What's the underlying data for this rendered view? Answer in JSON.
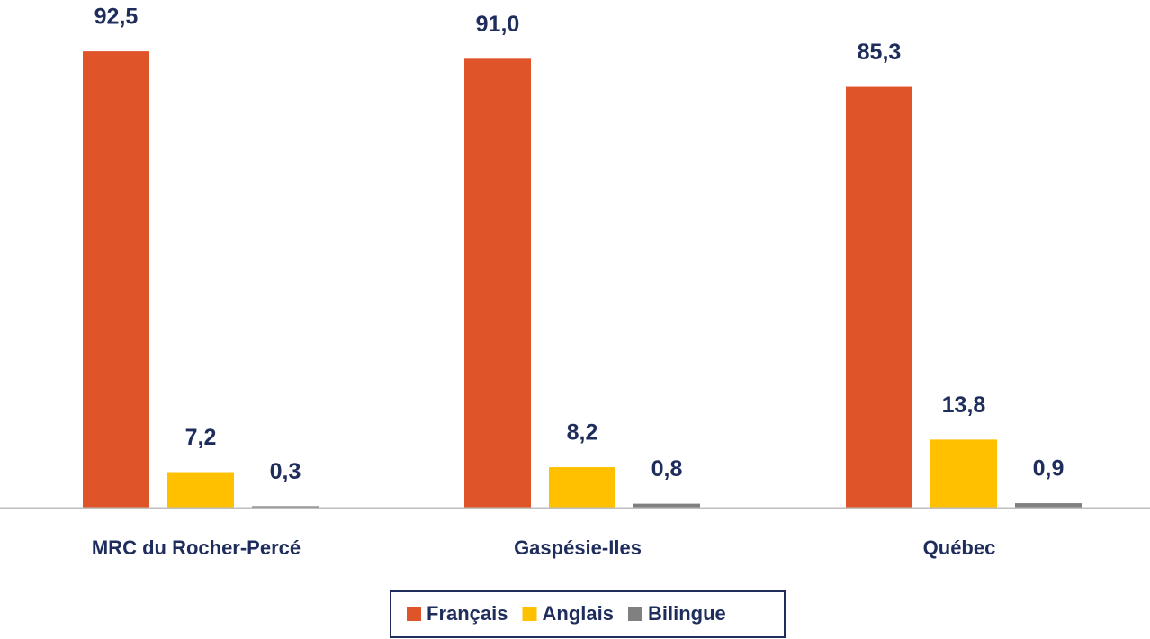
{
  "chart_data": {
    "type": "bar",
    "categories": [
      "MRC du Rocher-Percé",
      "Gaspésie-Iles",
      "Québec"
    ],
    "series": [
      {
        "name": "Français",
        "color": "#e0542a",
        "values": [
          92.5,
          91.0,
          85.3
        ],
        "value_labels": [
          "92,5",
          "91,0",
          "85,3"
        ]
      },
      {
        "name": "Anglais",
        "color": "#ffc000",
        "values": [
          7.2,
          8.2,
          13.8
        ],
        "value_labels": [
          "7,2",
          "8,2",
          "13,8"
        ]
      },
      {
        "name": "Bilingue",
        "color": "#808080",
        "values": [
          0.3,
          0.8,
          0.9
        ],
        "value_labels": [
          "0,3",
          "0,8",
          "0,9"
        ]
      }
    ],
    "ylim": [
      0,
      100
    ],
    "grid": false,
    "legend": "bottom"
  }
}
